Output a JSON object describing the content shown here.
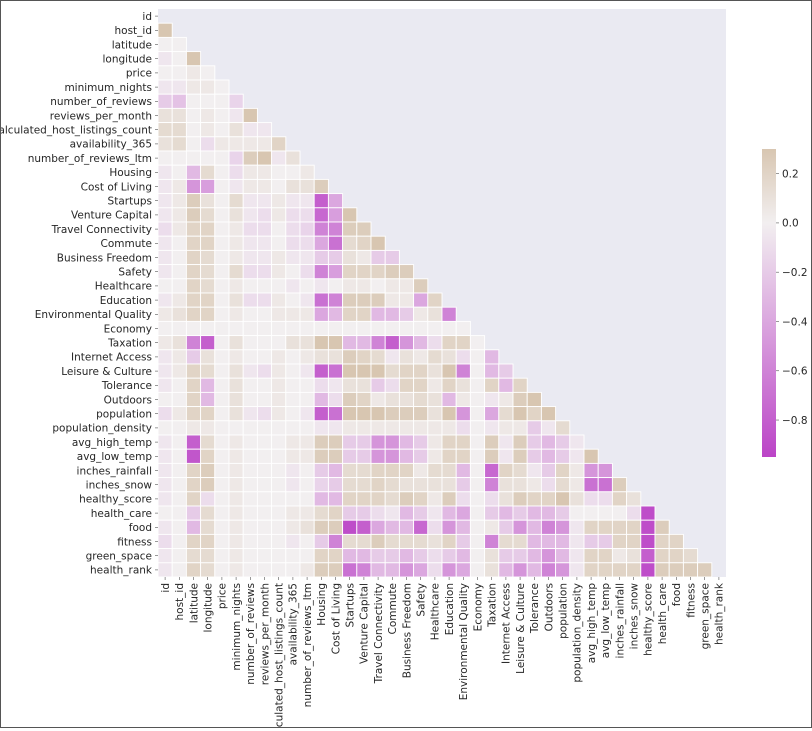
{
  "chart_data": {
    "type": "heatmap",
    "title": "",
    "xlabel": "",
    "ylabel": "",
    "mask": "upper-triangle",
    "grid": true,
    "labels": [
      "id",
      "host_id",
      "latitude",
      "longitude",
      "price",
      "minimum_nights",
      "number_of_reviews",
      "reviews_per_month",
      "calculated_host_listings_count",
      "availability_365",
      "number_of_reviews_ltm",
      "Housing",
      "Cost of Living",
      "Startups",
      "Venture Capital",
      "Travel Connectivity",
      "Commute",
      "Business Freedom",
      "Safety",
      "Healthcare",
      "Education",
      "Environmental Quality",
      "Economy",
      "Taxation",
      "Internet Access",
      "Leisure & Culture",
      "Tolerance",
      "Outdoors",
      "population",
      "population_density",
      "avg_high_temp",
      "avg_low_temp",
      "inches_rainfall",
      "inches_snow",
      "healthy_score",
      "health_care",
      "food",
      "fitness",
      "green_space",
      "health_rank"
    ],
    "colorbar": {
      "min": -0.95,
      "max": 0.3,
      "ticks": [
        0.2,
        0.0,
        -0.2,
        -0.4,
        -0.6,
        -0.8
      ],
      "tick_labels": [
        "0.2",
        "0.0",
        "−0.2",
        "−0.4",
        "−0.6",
        "−0.8"
      ],
      "low_color": "#bb44c7",
      "mid_color": "#f2eff0",
      "high_color": "#d8c6b1"
    },
    "rows": [
      [],
      [
        0.3
      ],
      [
        0.0,
        0.0
      ],
      [
        -0.05,
        0.0,
        0.3
      ],
      [
        0.0,
        0.0,
        0.05,
        0.0
      ],
      [
        -0.05,
        -0.05,
        0.05,
        0.05,
        0.0
      ],
      [
        -0.2,
        -0.25,
        0.0,
        0.0,
        0.0,
        -0.15
      ],
      [
        0.1,
        0.1,
        0.0,
        0.05,
        0.0,
        -0.05,
        0.3
      ],
      [
        0.15,
        0.15,
        0.0,
        0.05,
        0.0,
        0.1,
        -0.05,
        -0.05
      ],
      [
        0.1,
        0.15,
        0.0,
        -0.1,
        0.05,
        0.05,
        0.05,
        0.05,
        0.2
      ],
      [
        0.0,
        0.0,
        0.0,
        0.0,
        0.0,
        -0.15,
        0.25,
        0.3,
        -0.05,
        0.1
      ],
      [
        -0.05,
        0.0,
        -0.3,
        0.15,
        0.0,
        -0.1,
        0.05,
        0.05,
        0.0,
        0.0,
        0.05
      ],
      [
        -0.05,
        0.05,
        -0.5,
        -0.45,
        0.0,
        -0.05,
        0.05,
        0.05,
        0.0,
        0.1,
        0.1,
        0.25
      ],
      [
        -0.05,
        0.05,
        0.25,
        0.1,
        0.0,
        0.15,
        -0.05,
        -0.05,
        0.05,
        -0.05,
        -0.05,
        -0.8,
        -0.4
      ],
      [
        -0.05,
        0.05,
        0.25,
        0.15,
        0.0,
        0.1,
        -0.05,
        -0.1,
        0.05,
        -0.1,
        -0.1,
        -0.75,
        -0.45,
        0.3
      ],
      [
        -0.1,
        0.05,
        0.2,
        0.2,
        0.0,
        0.05,
        -0.1,
        -0.1,
        0.0,
        -0.1,
        -0.15,
        -0.6,
        -0.6,
        0.25,
        0.25
      ],
      [
        -0.05,
        0.0,
        0.2,
        0.2,
        0.0,
        0.05,
        -0.05,
        -0.05,
        0.0,
        -0.1,
        -0.1,
        -0.4,
        -0.7,
        0.15,
        0.2,
        0.3
      ],
      [
        -0.05,
        0.0,
        0.2,
        0.15,
        0.0,
        0.05,
        -0.05,
        -0.05,
        0.05,
        -0.05,
        -0.05,
        -0.2,
        -0.2,
        0.1,
        0.05,
        -0.2,
        -0.2
      ],
      [
        -0.05,
        0.0,
        0.2,
        0.15,
        0.0,
        0.15,
        -0.1,
        -0.1,
        0.05,
        0.0,
        -0.1,
        -0.6,
        -0.45,
        0.2,
        0.2,
        0.2,
        0.25,
        0.25
      ],
      [
        0.0,
        0.0,
        0.2,
        0.15,
        0.0,
        0.05,
        0.0,
        0.0,
        0.0,
        -0.05,
        0.0,
        -0.05,
        0.0,
        0.05,
        0.05,
        0.0,
        0.05,
        0.05,
        0.25
      ],
      [
        -0.05,
        0.05,
        0.2,
        0.2,
        0.0,
        0.1,
        -0.1,
        -0.1,
        0.05,
        0.0,
        -0.05,
        -0.7,
        -0.6,
        0.25,
        0.25,
        0.25,
        0.05,
        0.05,
        -0.4,
        0.2
      ],
      [
        0.05,
        0.1,
        0.2,
        0.2,
        0.0,
        0.05,
        0.0,
        0.0,
        0.05,
        0.05,
        0.05,
        -0.4,
        -0.3,
        0.2,
        0.2,
        -0.3,
        -0.3,
        -0.2,
        0.05,
        0.1,
        -0.6
      ],
      [
        0.0,
        0.0,
        0.0,
        0.0,
        0.0,
        0.0,
        0.0,
        0.0,
        0.0,
        0.0,
        0.0,
        0.0,
        0.0,
        0.0,
        0.0,
        0.0,
        0.0,
        0.0,
        0.0,
        0.0,
        0.0,
        0.0
      ],
      [
        0.05,
        0.1,
        -0.6,
        -0.8,
        0.0,
        0.1,
        0.0,
        0.0,
        0.0,
        0.1,
        0.1,
        0.3,
        0.3,
        -0.3,
        -0.3,
        -0.6,
        -0.8,
        -0.5,
        -0.3,
        -0.1,
        0.2,
        0.2,
        0.0
      ],
      [
        -0.05,
        0.05,
        -0.2,
        0.1,
        0.0,
        0.05,
        0.0,
        0.0,
        0.05,
        0.0,
        0.05,
        0.1,
        0.1,
        0.25,
        0.2,
        0.15,
        -0.05,
        0.1,
        0.05,
        0.15,
        0.1,
        -0.1,
        0.0,
        -0.3
      ],
      [
        -0.05,
        0.05,
        0.2,
        0.15,
        0.0,
        0.1,
        -0.05,
        -0.1,
        0.05,
        0.0,
        -0.05,
        -0.8,
        -0.7,
        0.3,
        0.3,
        0.3,
        0.15,
        0.2,
        0.2,
        0.1,
        0.3,
        -0.6,
        0.0,
        -0.3,
        -0.2
      ],
      [
        -0.05,
        0.0,
        0.2,
        -0.3,
        0.0,
        0.1,
        0.0,
        0.0,
        0.05,
        0.0,
        0.0,
        -0.1,
        -0.05,
        0.1,
        0.1,
        -0.2,
        -0.1,
        0.2,
        0.2,
        0.05,
        0.2,
        0.1,
        0.0,
        0.2,
        -0.3,
        0.2
      ],
      [
        0.0,
        0.0,
        0.2,
        -0.3,
        0.0,
        0.1,
        0.0,
        0.0,
        0.05,
        0.0,
        0.0,
        -0.3,
        -0.1,
        0.25,
        0.2,
        0.05,
        0.1,
        0.1,
        0.15,
        0.1,
        -0.3,
        0.05,
        0.0,
        -0.05,
        0.05,
        0.25,
        0.3
      ],
      [
        -0.1,
        0.05,
        0.2,
        0.2,
        0.0,
        0.1,
        -0.05,
        -0.1,
        0.05,
        0.0,
        -0.05,
        -0.8,
        -0.7,
        0.3,
        0.3,
        0.3,
        0.25,
        0.25,
        0.25,
        0.1,
        0.3,
        -0.5,
        0.0,
        -0.4,
        0.15,
        0.3,
        0.2,
        0.3
      ],
      [
        0.0,
        0.0,
        0.05,
        0.05,
        0.0,
        0.0,
        0.0,
        0.0,
        0.0,
        0.0,
        0.0,
        -0.05,
        -0.05,
        0.05,
        0.05,
        0.05,
        0.05,
        0.05,
        0.05,
        0.05,
        0.05,
        -0.1,
        0.0,
        -0.05,
        0.05,
        0.05,
        -0.2,
        -0.05,
        0.15
      ],
      [
        -0.05,
        0.0,
        -0.8,
        0.15,
        0.0,
        0.05,
        0.0,
        0.0,
        0.0,
        0.05,
        0.05,
        0.25,
        0.25,
        -0.2,
        -0.2,
        -0.5,
        -0.5,
        -0.3,
        -0.2,
        0.05,
        0.2,
        0.2,
        0.0,
        0.25,
        -0.05,
        0.25,
        -0.2,
        -0.3,
        -0.2,
        -0.05
      ],
      [
        -0.05,
        0.0,
        -0.85,
        0.2,
        0.0,
        0.05,
        0.0,
        0.0,
        0.0,
        0.05,
        0.05,
        0.25,
        0.25,
        -0.2,
        -0.2,
        -0.5,
        -0.5,
        -0.3,
        -0.2,
        0.05,
        0.2,
        0.2,
        0.0,
        0.25,
        -0.05,
        0.25,
        -0.2,
        -0.3,
        -0.2,
        -0.05,
        0.3
      ],
      [
        -0.05,
        0.0,
        0.2,
        0.25,
        0.0,
        0.05,
        0.0,
        0.0,
        0.0,
        -0.05,
        0.0,
        -0.2,
        -0.3,
        0.15,
        0.15,
        0.2,
        0.2,
        0.2,
        0.05,
        0.15,
        0.15,
        -0.3,
        0.0,
        -0.75,
        0.2,
        0.15,
        -0.05,
        -0.2,
        0.2,
        0.05,
        -0.5,
        -0.5
      ],
      [
        -0.05,
        0.0,
        0.2,
        0.25,
        0.0,
        0.05,
        0.0,
        0.0,
        0.0,
        -0.05,
        0.0,
        -0.15,
        -0.2,
        0.15,
        0.15,
        0.2,
        0.15,
        0.1,
        0.1,
        0.1,
        0.1,
        -0.2,
        0.0,
        -0.6,
        0.1,
        0.1,
        0.05,
        -0.1,
        0.15,
        0.05,
        -0.7,
        -0.7,
        0.25
      ],
      [
        -0.05,
        0.0,
        0.2,
        -0.1,
        0.0,
        0.05,
        0.0,
        0.0,
        0.0,
        0.0,
        0.0,
        -0.3,
        -0.3,
        0.2,
        0.2,
        0.2,
        0.15,
        0.25,
        0.2,
        0.05,
        0.25,
        -0.1,
        0.0,
        -0.1,
        0.1,
        0.25,
        0.2,
        0.2,
        0.3,
        0.1,
        -0.1,
        -0.1,
        0.2,
        0.1
      ],
      [
        0.0,
        0.0,
        -0.2,
        0.15,
        0.0,
        0.05,
        0.0,
        0.0,
        0.0,
        0.05,
        0.05,
        0.15,
        0.2,
        -0.2,
        -0.2,
        -0.1,
        -0.05,
        -0.3,
        -0.2,
        -0.05,
        -0.3,
        -0.4,
        0.0,
        -0.2,
        -0.3,
        -0.2,
        -0.3,
        -0.3,
        -0.2,
        0.0,
        0.0,
        0.0,
        0.0,
        -0.1,
        -0.9
      ],
      [
        -0.05,
        0.0,
        -0.3,
        0.15,
        0.0,
        0.05,
        0.0,
        0.0,
        0.0,
        0.05,
        0.1,
        0.25,
        0.25,
        -0.9,
        -0.8,
        -0.4,
        -0.3,
        -0.3,
        -0.75,
        -0.1,
        -0.5,
        -0.3,
        0.0,
        0.05,
        -0.2,
        -0.5,
        -0.3,
        -0.6,
        -0.5,
        -0.05,
        0.2,
        0.2,
        0.2,
        0.2,
        -0.9,
        0.25
      ],
      [
        -0.1,
        0.0,
        0.2,
        0.2,
        0.0,
        0.05,
        0.0,
        0.0,
        0.0,
        -0.05,
        0.0,
        -0.2,
        -0.6,
        0.15,
        0.15,
        0.25,
        0.15,
        0.15,
        0.15,
        0.1,
        0.2,
        -0.2,
        0.0,
        -0.6,
        0.15,
        0.15,
        -0.3,
        -0.3,
        -0.3,
        -0.05,
        -0.2,
        -0.2,
        0.2,
        0.2,
        -0.9,
        0.2,
        0.2
      ],
      [
        -0.05,
        0.0,
        0.15,
        0.15,
        0.0,
        0.05,
        0.0,
        0.0,
        0.0,
        0.0,
        0.0,
        0.2,
        0.2,
        -0.3,
        -0.3,
        -0.2,
        -0.2,
        -0.3,
        -0.2,
        -0.1,
        -0.2,
        -0.3,
        0.0,
        0.1,
        -0.2,
        -0.2,
        -0.3,
        -0.5,
        -0.3,
        -0.05,
        0.2,
        0.2,
        0.05,
        0.1,
        -0.8,
        0.2,
        0.2,
        0.15
      ],
      [
        -0.05,
        0.0,
        0.2,
        0.15,
        0.0,
        0.05,
        0.0,
        0.0,
        0.0,
        0.0,
        0.05,
        0.25,
        0.25,
        -0.7,
        -0.6,
        -0.3,
        -0.3,
        -0.5,
        -0.4,
        -0.1,
        -0.5,
        -0.4,
        0.0,
        0.1,
        -0.3,
        -0.5,
        -0.3,
        -0.6,
        -0.5,
        -0.05,
        0.2,
        0.2,
        0.2,
        0.2,
        -0.9,
        0.25,
        0.25,
        0.25,
        0.25
      ]
    ]
  }
}
